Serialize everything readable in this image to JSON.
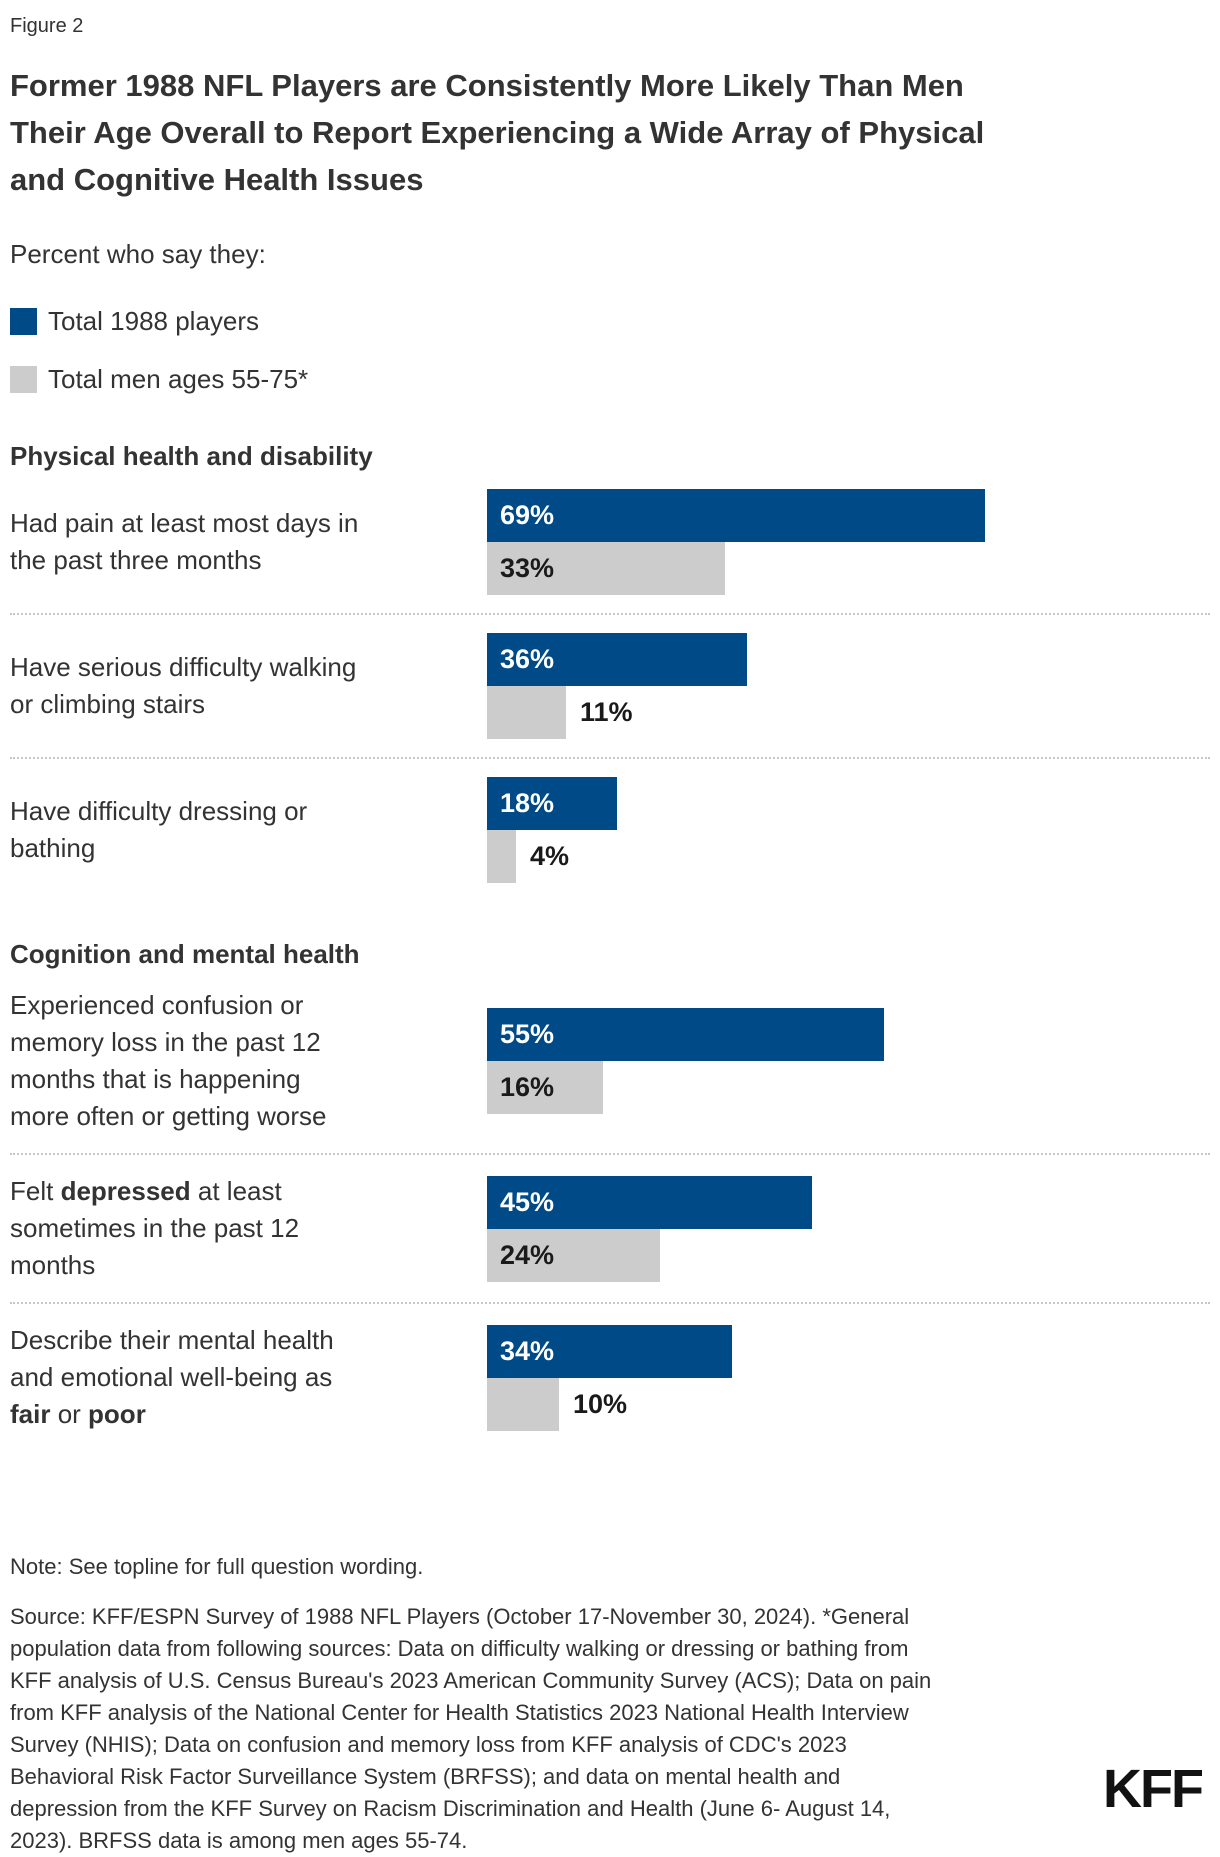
{
  "figure_label": "Figure 2",
  "title": "Former 1988 NFL Players are Consistently More Likely Than Men Their Age Overall to Report Experiencing a Wide Array of Physical and Cognitive Health Issues",
  "subtitle": "Percent who say they:",
  "colors": {
    "players_blue": "#004a87",
    "men_gray": "#cccccc",
    "text": "#333333",
    "divider": "#c7c7c7"
  },
  "legend": {
    "items": [
      {
        "label": "Total 1988 players",
        "color": "#004a87"
      },
      {
        "label": "Total men ages 55-75*",
        "color": "#cccccc"
      }
    ]
  },
  "chart_data": {
    "type": "bar",
    "orientation": "horizontal",
    "value_suffix": "%",
    "xlim": [
      0,
      100
    ],
    "grid": false,
    "legend_position": "top-left",
    "series": [
      {
        "name": "Total 1988 players",
        "color": "#004a87",
        "values": [
          69,
          36,
          18,
          55,
          45,
          34
        ]
      },
      {
        "name": "Total men ages 55-75*",
        "color": "#cccccc",
        "values": [
          33,
          11,
          4,
          16,
          24,
          10
        ]
      }
    ],
    "categories": [
      "Had pain at least most days in the past three months",
      "Have serious difficulty walking or climbing stairs",
      "Have difficulty dressing or bathing",
      "Experienced confusion or memory loss in the past 12 months that is happening more often or getting worse",
      "Felt depressed at least sometimes in the past 12 months",
      "Describe their mental health and emotional well-being as fair or poor"
    ],
    "sections": [
      {
        "heading": "Physical health and disability",
        "rows": [
          {
            "label": "Had pain at least most days in the past three months",
            "lines": [
              [
                {
                  "t": "Had pain at least most days in",
                  "b": false
                }
              ],
              [
                {
                  "t": "the past three months",
                  "b": false
                }
              ]
            ],
            "players": 69,
            "men": 33
          },
          {
            "label": "Have serious difficulty walking or climbing stairs",
            "lines": [
              [
                {
                  "t": "Have serious difficulty walking",
                  "b": false
                }
              ],
              [
                {
                  "t": "or climbing stairs",
                  "b": false
                }
              ]
            ],
            "players": 36,
            "men": 11
          },
          {
            "label": "Have difficulty dressing or bathing",
            "lines": [
              [
                {
                  "t": "Have difficulty dressing or",
                  "b": false
                }
              ],
              [
                {
                  "t": "bathing",
                  "b": false
                }
              ]
            ],
            "players": 18,
            "men": 4
          }
        ]
      },
      {
        "heading": "Cognition and mental health",
        "rows": [
          {
            "label": "Experienced confusion or memory loss in the past 12 months that is happening more often or getting worse",
            "lines": [
              [
                {
                  "t": "Experienced confusion or",
                  "b": false
                }
              ],
              [
                {
                  "t": "memory loss in the past 12",
                  "b": false
                }
              ],
              [
                {
                  "t": "months that is happening",
                  "b": false
                }
              ],
              [
                {
                  "t": "more often or getting worse",
                  "b": false
                }
              ]
            ],
            "players": 55,
            "men": 16
          },
          {
            "label": "Felt depressed at least sometimes in the past 12 months",
            "lines": [
              [
                {
                  "t": "Felt ",
                  "b": false
                },
                {
                  "t": "depressed",
                  "b": true
                },
                {
                  "t": " at least",
                  "b": false
                }
              ],
              [
                {
                  "t": "sometimes in the past 12",
                  "b": false
                }
              ],
              [
                {
                  "t": "months",
                  "b": false
                }
              ]
            ],
            "players": 45,
            "men": 24
          },
          {
            "label": "Describe their mental health and emotional well-being as fair or poor",
            "lines": [
              [
                {
                  "t": "Describe their mental health",
                  "b": false
                }
              ],
              [
                {
                  "t": "and emotional well-being as",
                  "b": false
                }
              ],
              [
                {
                  "t": "fair",
                  "b": true
                },
                {
                  "t": " or ",
                  "b": false
                },
                {
                  "t": "poor",
                  "b": true
                }
              ]
            ],
            "players": 34,
            "men": 10
          }
        ]
      }
    ]
  },
  "note": "Note: See topline for full question wording.",
  "source": "Source: KFF/ESPN Survey of 1988 NFL Players (October 17-November 30, 2024). *General population data from following sources: Data on difficulty walking or dressing or bathing from KFF analysis of U.S. Census Bureau's 2023 American Community Survey (ACS); Data on pain from KFF analysis of the National Center for Health Statistics 2023 National Health Interview Survey (NHIS); Data on confusion and memory loss from KFF analysis of CDC's 2023 Behavioral Risk Factor Surveillance System (BRFSS); and data on mental health and depression from the KFF Survey on Racism Discrimination and Health (June 6- August 14, 2023). BRFSS data is among men ages 55-74.",
  "logo": "KFF"
}
